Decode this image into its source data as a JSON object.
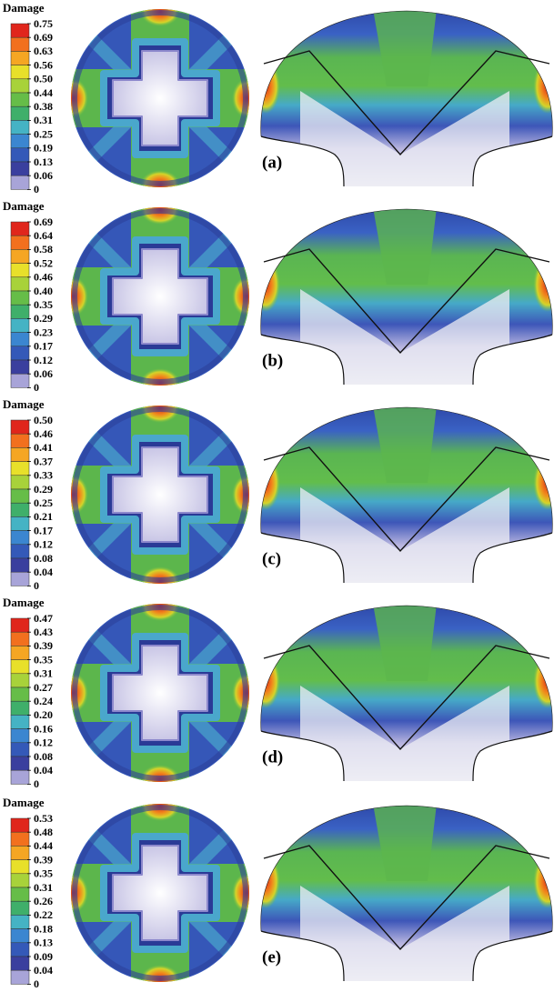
{
  "panels": [
    {
      "legend_title": "Damage",
      "legend_labels": [
        "0.75",
        "0.69",
        "0.63",
        "0.56",
        "0.50",
        "0.44",
        "0.38",
        "0.31",
        "0.25",
        "0.19",
        "0.13",
        "0.06",
        "0"
      ],
      "label": "(a)"
    },
    {
      "legend_title": "Damage",
      "legend_labels": [
        "0.69",
        "0.64",
        "0.58",
        "0.52",
        "0.46",
        "0.40",
        "0.35",
        "0.29",
        "0.23",
        "0.17",
        "0.12",
        "0.06",
        "0"
      ],
      "label": "(b)"
    },
    {
      "legend_title": "Damage",
      "legend_labels": [
        "0.50",
        "0.46",
        "0.41",
        "0.37",
        "0.33",
        "0.29",
        "0.25",
        "0.21",
        "0.17",
        "0.12",
        "0.08",
        "0.04",
        "0"
      ],
      "label": "(c)"
    },
    {
      "legend_title": "Damage",
      "legend_labels": [
        "0.47",
        "0.43",
        "0.39",
        "0.35",
        "0.31",
        "0.27",
        "0.24",
        "0.20",
        "0.16",
        "0.12",
        "0.08",
        "0.04",
        "0"
      ],
      "label": "(d)"
    },
    {
      "legend_title": "Damage",
      "legend_labels": [
        "0.53",
        "0.48",
        "0.44",
        "0.39",
        "0.35",
        "0.31",
        "0.26",
        "0.22",
        "0.18",
        "0.13",
        "0.09",
        "0.04",
        "0"
      ],
      "label": "(e)"
    }
  ]
}
